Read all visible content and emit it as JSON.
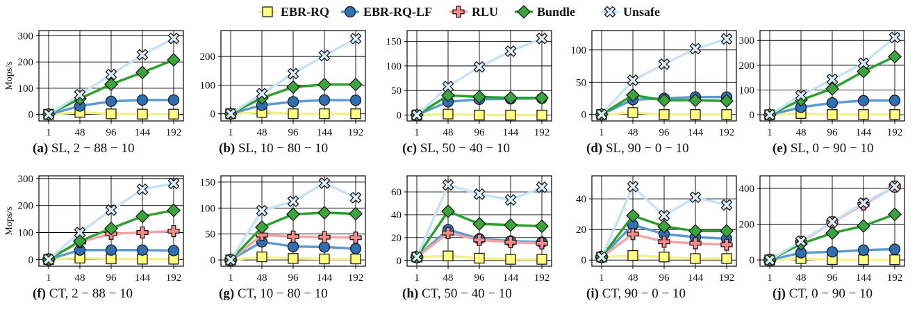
{
  "legend": {
    "series": [
      {
        "name": "EBR-RQ",
        "marker": "square",
        "line": "#f4f08a",
        "fill": "#ffff80"
      },
      {
        "name": "EBR-RQ-LF",
        "marker": "circle",
        "line": "#5b9bd5",
        "fill": "#2f6fb4"
      },
      {
        "name": "RLU",
        "marker": "cross",
        "line": "#f4a4a4",
        "fill": "#ff8a8a"
      },
      {
        "name": "Bundle",
        "marker": "diamond",
        "line": "#2ca02c",
        "fill": "#3aa53a"
      },
      {
        "name": "Unsafe",
        "marker": "xcross",
        "line": "#c6e2f7",
        "fill": "#d8ecfb"
      }
    ]
  },
  "chart_data": [
    {
      "type": "line",
      "id": "a",
      "label": "(a)",
      "caption": "SL, 2 − 88 − 10",
      "categories": [
        "1",
        "48",
        "96",
        "144",
        "192"
      ],
      "ylabel": "Mops/s",
      "ylim": [
        -25,
        320
      ],
      "yticks": [
        0,
        100,
        200,
        300
      ],
      "series": [
        {
          "name": "EBR-RQ",
          "values": [
            0,
            8,
            2,
            1,
            1
          ]
        },
        {
          "name": "EBR-RQ-LF",
          "values": [
            0,
            32,
            50,
            55,
            55
          ]
        },
        {
          "name": "Bundle",
          "values": [
            0,
            60,
            115,
            160,
            208
          ]
        },
        {
          "name": "Unsafe",
          "values": [
            0,
            75,
            152,
            228,
            290
          ]
        }
      ]
    },
    {
      "type": "line",
      "id": "b",
      "label": "(b)",
      "caption": "SL, 10 − 80 − 10",
      "categories": [
        "1",
        "48",
        "96",
        "144",
        "192"
      ],
      "ylabel": "",
      "ylim": [
        -25,
        290
      ],
      "yticks": [
        0,
        100,
        200
      ],
      "series": [
        {
          "name": "EBR-RQ",
          "values": [
            0,
            5,
            0,
            0,
            0
          ]
        },
        {
          "name": "EBR-RQ-LF",
          "values": [
            0,
            30,
            42,
            48,
            47
          ]
        },
        {
          "name": "Bundle",
          "values": [
            0,
            55,
            93,
            102,
            102
          ]
        },
        {
          "name": "Unsafe",
          "values": [
            0,
            70,
            140,
            203,
            262
          ]
        }
      ]
    },
    {
      "type": "line",
      "id": "c",
      "label": "(c)",
      "caption": "SL, 50 − 40 − 10",
      "categories": [
        "1",
        "48",
        "96",
        "144",
        "192"
      ],
      "ylabel": "",
      "ylim": [
        -12,
        172
      ],
      "yticks": [
        0,
        50,
        100,
        150
      ],
      "series": [
        {
          "name": "EBR-RQ",
          "values": [
            0,
            2,
            0,
            0,
            0
          ]
        },
        {
          "name": "EBR-RQ-LF",
          "values": [
            0,
            27,
            32,
            33,
            34
          ]
        },
        {
          "name": "Bundle",
          "values": [
            0,
            40,
            37,
            35,
            35
          ]
        },
        {
          "name": "Unsafe",
          "values": [
            0,
            58,
            98,
            130,
            156
          ]
        }
      ]
    },
    {
      "type": "line",
      "id": "d",
      "label": "(d)",
      "caption": "SL, 90 − 0 − 10",
      "categories": [
        "1",
        "48",
        "96",
        "144",
        "192"
      ],
      "ylabel": "",
      "ylim": [
        -10,
        130
      ],
      "yticks": [
        0,
        50,
        100
      ],
      "series": [
        {
          "name": "EBR-RQ",
          "values": [
            0,
            3,
            0,
            0,
            0
          ]
        },
        {
          "name": "EBR-RQ-LF",
          "values": [
            0,
            23,
            25,
            27,
            27
          ]
        },
        {
          "name": "Bundle",
          "values": [
            0,
            30,
            22,
            22,
            21
          ]
        },
        {
          "name": "Unsafe",
          "values": [
            0,
            53,
            78,
            102,
            117
          ]
        }
      ]
    },
    {
      "type": "line",
      "id": "e",
      "label": "(e)",
      "caption": "SL, 0 − 90 − 10",
      "categories": [
        "1",
        "48",
        "96",
        "144",
        "192"
      ],
      "ylabel": "",
      "ylim": [
        -25,
        340
      ],
      "yticks": [
        0,
        100,
        200,
        300
      ],
      "series": [
        {
          "name": "EBR-RQ",
          "values": [
            0,
            5,
            1,
            1,
            1
          ]
        },
        {
          "name": "EBR-RQ-LF",
          "values": [
            0,
            30,
            48,
            57,
            58
          ]
        },
        {
          "name": "Bundle",
          "values": [
            0,
            60,
            105,
            175,
            235
          ]
        },
        {
          "name": "Unsafe",
          "values": [
            0,
            78,
            143,
            208,
            312
          ]
        }
      ]
    },
    {
      "type": "line",
      "id": "f",
      "label": "(f)",
      "caption": "CT, 2 − 88 − 10",
      "categories": [
        "1",
        "48",
        "96",
        "144",
        "192"
      ],
      "ylabel": "Mops/s",
      "ylim": [
        -25,
        310
      ],
      "yticks": [
        0,
        100,
        200,
        300
      ],
      "series": [
        {
          "name": "EBR-RQ",
          "values": [
            0,
            5,
            2,
            1,
            1
          ]
        },
        {
          "name": "EBR-RQ-LF",
          "values": [
            0,
            35,
            35,
            35,
            33
          ]
        },
        {
          "name": "RLU",
          "values": [
            0,
            65,
            95,
            100,
            105
          ]
        },
        {
          "name": "Bundle",
          "values": [
            0,
            68,
            115,
            160,
            182
          ]
        },
        {
          "name": "Unsafe",
          "values": [
            0,
            100,
            183,
            260,
            282
          ]
        }
      ]
    },
    {
      "type": "line",
      "id": "g",
      "label": "(g)",
      "caption": "CT, 10 − 80 − 10",
      "categories": [
        "1",
        "48",
        "96",
        "144",
        "192"
      ],
      "ylabel": "",
      "ylim": [
        -12,
        162
      ],
      "yticks": [
        0,
        50,
        100,
        150
      ],
      "series": [
        {
          "name": "EBR-RQ",
          "values": [
            0,
            6,
            3,
            2,
            2
          ]
        },
        {
          "name": "EBR-RQ-LF",
          "values": [
            0,
            35,
            26,
            25,
            22
          ]
        },
        {
          "name": "RLU",
          "values": [
            0,
            48,
            45,
            44,
            43
          ]
        },
        {
          "name": "Bundle",
          "values": [
            0,
            63,
            88,
            91,
            89
          ]
        },
        {
          "name": "Unsafe",
          "values": [
            0,
            95,
            113,
            148,
            120
          ]
        }
      ]
    },
    {
      "type": "line",
      "id": "h",
      "label": "(h)",
      "caption": "CT, 50 − 40 − 10",
      "categories": [
        "1",
        "48",
        "96",
        "144",
        "192"
      ],
      "ylabel": "",
      "ylim": [
        -5,
        74
      ],
      "yticks": [
        0,
        20,
        40,
        60
      ],
      "series": [
        {
          "name": "EBR-RQ",
          "values": [
            3,
            4,
            2,
            1,
            1
          ]
        },
        {
          "name": "EBR-RQ-LF",
          "values": [
            3,
            27,
            19,
            17,
            16
          ]
        },
        {
          "name": "RLU",
          "values": [
            3,
            24,
            18,
            16,
            15
          ]
        },
        {
          "name": "Bundle",
          "values": [
            3,
            43,
            32,
            31,
            30
          ]
        },
        {
          "name": "Unsafe",
          "values": [
            3,
            66,
            58,
            53,
            64
          ]
        }
      ]
    },
    {
      "type": "line",
      "id": "i",
      "label": "(i)",
      "caption": "CT, 90 − 0 − 10",
      "categories": [
        "1",
        "48",
        "96",
        "144",
        "192"
      ],
      "ylabel": "",
      "ylim": [
        -4,
        55
      ],
      "yticks": [
        0,
        20,
        40
      ],
      "series": [
        {
          "name": "EBR-RQ",
          "values": [
            2,
            3,
            2,
            1,
            1
          ]
        },
        {
          "name": "EBR-RQ-LF",
          "values": [
            2,
            23,
            17,
            15,
            14
          ]
        },
        {
          "name": "RLU",
          "values": [
            2,
            17,
            12,
            11,
            10
          ]
        },
        {
          "name": "Bundle",
          "values": [
            2,
            29,
            22,
            19,
            19
          ]
        },
        {
          "name": "Unsafe",
          "values": [
            2,
            48,
            29,
            41,
            36
          ]
        }
      ]
    },
    {
      "type": "line",
      "id": "j",
      "label": "(j)",
      "caption": "CT, 0 − 90 − 10",
      "categories": [
        "1",
        "48",
        "96",
        "144",
        "192"
      ],
      "ylabel": "",
      "ylim": [
        -35,
        470
      ],
      "yticks": [
        0,
        200,
        400
      ],
      "series": [
        {
          "name": "EBR-RQ",
          "values": [
            0,
            8,
            2,
            1,
            1
          ]
        },
        {
          "name": "EBR-RQ-LF",
          "values": [
            0,
            40,
            45,
            55,
            60
          ]
        },
        {
          "name": "RLU",
          "values": [
            0,
            100,
            210,
            310,
            410
          ]
        },
        {
          "name": "Bundle",
          "values": [
            0,
            90,
            150,
            190,
            255
          ]
        },
        {
          "name": "Unsafe",
          "values": [
            0,
            105,
            212,
            318,
            410
          ]
        }
      ]
    }
  ]
}
